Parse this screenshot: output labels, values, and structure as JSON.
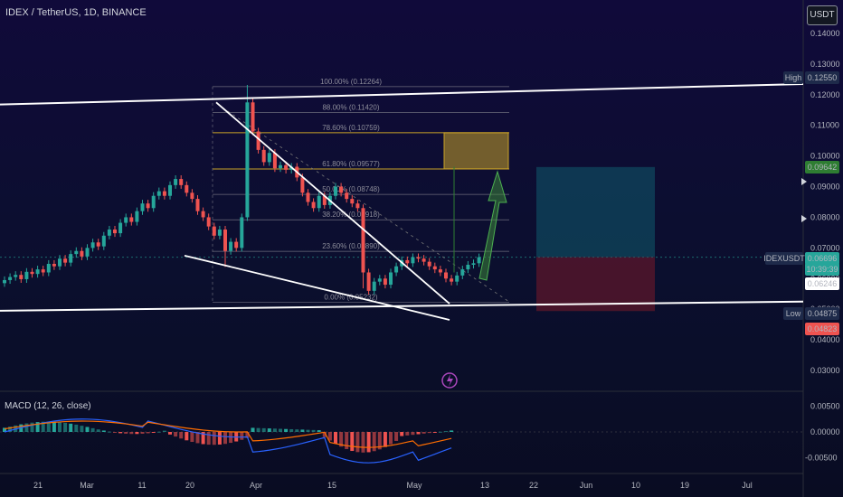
{
  "header": {
    "title": "IDEX / TetherUS, 1D, BINANCE",
    "currency_button": "USDT"
  },
  "price_axis": {
    "ticks": [
      "0.14000",
      "0.13000",
      "0.12000",
      "0.11000",
      "0.10000",
      "0.09000",
      "0.08000",
      "0.07000",
      "0.06000",
      "0.05000",
      "0.04000",
      "0.03000"
    ],
    "high_label": "High",
    "high_value": "0.12550",
    "low_label": "Low",
    "low_value": "0.04875",
    "low_value_2": "0.04823",
    "target_value": "0.09642",
    "symbol_label": "IDEXUSDT",
    "last_price": "0.06696",
    "countdown": "10:39:39",
    "entry_value": "0.06246"
  },
  "macd": {
    "label": "MACD (12, 26, close)",
    "ticks": [
      "0.00500",
      "0.00000",
      "-0.00500"
    ]
  },
  "time_axis": {
    "labels": [
      "21",
      "Mar",
      "11",
      "20",
      "Apr",
      "15",
      "May",
      "13",
      "22",
      "Jun",
      "10",
      "19",
      "Jul"
    ]
  },
  "fib_levels": [
    {
      "label": "100.00% (0.12264)",
      "value": 0.12264
    },
    {
      "label": "88.00% (0.11420)",
      "value": 0.1142
    },
    {
      "label": "78.60% (0.10759)",
      "value": 0.10759
    },
    {
      "label": "61.80% (0.09577)",
      "value": 0.09577
    },
    {
      "label": "50.00% (0.08748)",
      "value": 0.08748
    },
    {
      "label": "38.20% (0.07918)",
      "value": 0.07918
    },
    {
      "label": "23.60% (0.06890)",
      "value": 0.0689
    },
    {
      "label": "0.00% (0.05232)",
      "value": 0.05232
    }
  ],
  "chart_data": {
    "type": "candlestick",
    "symbol": "IDEX / TetherUS",
    "interval": "1D",
    "exchange": "BINANCE",
    "yaxis_range": [
      0.0245,
      0.1445
    ],
    "closes": [
      0.0595,
      0.0605,
      0.0612,
      0.0598,
      0.0622,
      0.0615,
      0.063,
      0.062,
      0.0648,
      0.064,
      0.0665,
      0.0652,
      0.068,
      0.069,
      0.0672,
      0.07,
      0.0718,
      0.0705,
      0.074,
      0.076,
      0.0748,
      0.0782,
      0.08,
      0.0785,
      0.082,
      0.0845,
      0.083,
      0.087,
      0.0885,
      0.087,
      0.0905,
      0.0925,
      0.0905,
      0.088,
      0.086,
      0.082,
      0.08,
      0.077,
      0.074,
      0.076,
      0.069,
      0.072,
      0.07,
      0.08,
      0.1175,
      0.108,
      0.102,
      0.098,
      0.101,
      0.096,
      0.097,
      0.0955,
      0.0965,
      0.093,
      0.088,
      0.085,
      0.083,
      0.087,
      0.084,
      0.087,
      0.09,
      0.088,
      0.086,
      0.0845,
      0.083,
      0.062,
      0.056,
      0.059,
      0.06,
      0.058,
      0.062,
      0.064,
      0.066,
      0.065,
      0.067,
      0.0665,
      0.0655,
      0.064,
      0.063,
      0.062,
      0.06,
      0.059,
      0.061,
      0.063,
      0.0645,
      0.065,
      0.06696
    ],
    "macd": {
      "y_range": [
        -0.0075,
        0.007
      ]
    },
    "annotations": {
      "resistance_channel": "white trendlines",
      "projection_zone_top": 0.1076,
      "projection_zone_bottom": 0.0958
    }
  },
  "colors": {
    "up": "#26a69a",
    "down": "#ef5350",
    "macd_line": "#2962ff",
    "signal_line": "#ff6d00",
    "fib_gold": "#c9a227"
  }
}
